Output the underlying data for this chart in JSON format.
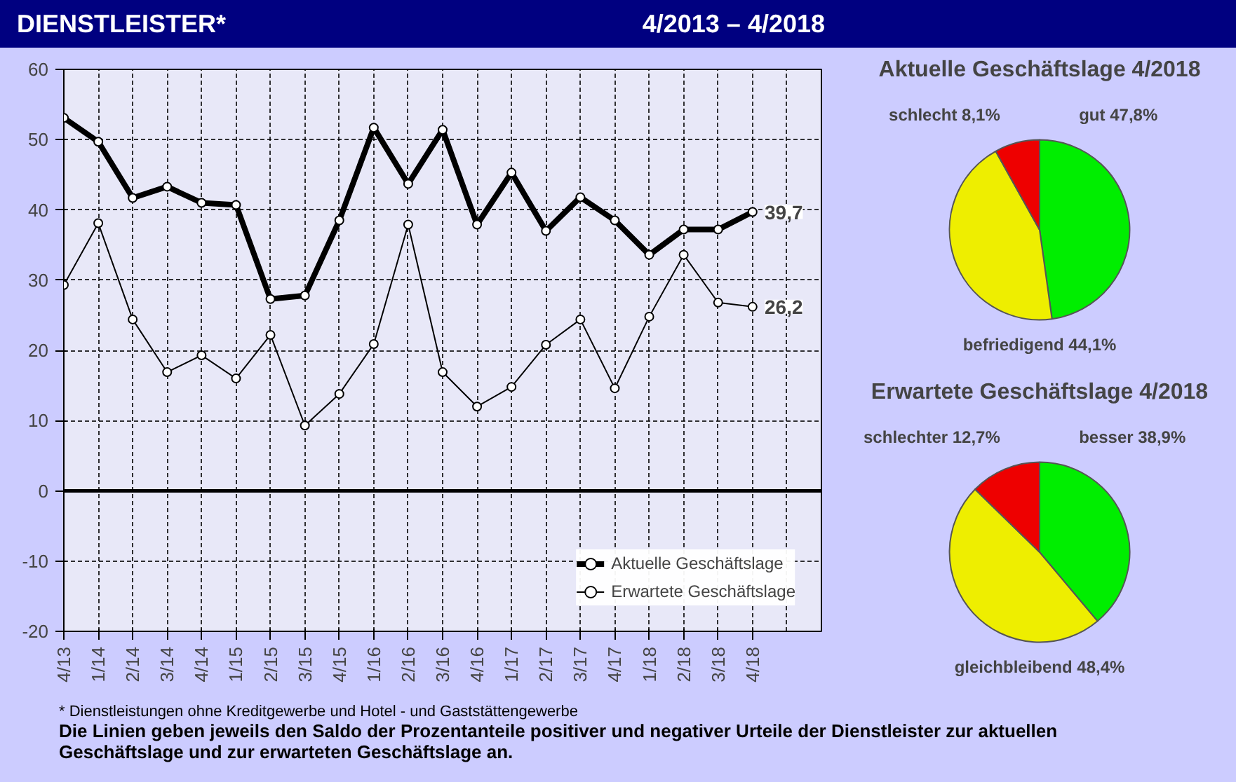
{
  "chart_data": [
    {
      "type": "line",
      "title": "DIENSTLEISTER*",
      "subtitle": "4/2013 – 4/2018",
      "categories": [
        "4/13",
        "1/14",
        "2/14",
        "3/14",
        "4/14",
        "1/15",
        "2/15",
        "3/15",
        "4/15",
        "1/16",
        "2/16",
        "3/16",
        "4/16",
        "1/17",
        "2/17",
        "3/17",
        "4/17",
        "1/18",
        "2/18",
        "3/18",
        "4/18"
      ],
      "series": [
        {
          "name": "Aktuelle Geschäftslage",
          "color": "#000000",
          "values": [
            53.1,
            49.7,
            41.7,
            43.3,
            41.0,
            40.7,
            27.3,
            27.8,
            38.5,
            51.7,
            43.7,
            51.4,
            37.9,
            45.3,
            37.0,
            41.8,
            38.5,
            33.6,
            37.2,
            37.2,
            39.7
          ]
        },
        {
          "name": "Erwartete Geschäftslage",
          "color": "#000000",
          "values": [
            29.3,
            38.1,
            24.4,
            16.9,
            19.3,
            16.0,
            22.2,
            9.3,
            13.8,
            20.9,
            37.9,
            16.9,
            12.0,
            14.8,
            20.8,
            24.4,
            14.6,
            24.8,
            33.6,
            26.8,
            26.2
          ]
        }
      ],
      "ylim": [
        -20,
        60
      ],
      "yticks": [
        -20,
        -10,
        0,
        10,
        20,
        30,
        40,
        50,
        60
      ],
      "ref_lines": [
        {
          "axis": "y",
          "value": 0,
          "color": "#000000"
        }
      ],
      "grid": true,
      "legend": "bottom right",
      "marker": "circle",
      "line_style": "solid",
      "annotations": [
        {
          "text": "39,7",
          "x": "4/18",
          "y": 39.7
        },
        {
          "text": "26,2",
          "x": "4/18",
          "y": 26.2
        },
        "* Dienstleistungen ohne Kreditgewerbe und Hotel - und Gaststättengewerbe",
        "Die Linien geben jeweils den Saldo der Prozentanteile positiver und negativer Urteile der Dienstleister zur aktuellen Geschäftslage und zur erwarteten Geschäftslage an."
      ]
    },
    {
      "type": "pie",
      "title": "Aktuelle Geschäftslage 4/2018",
      "categories": [
        "gut",
        "befriedigend",
        "schlecht"
      ],
      "values": [
        47.8,
        44.1,
        8.1
      ],
      "value_labels": [
        "47,8%",
        "44,1%",
        "8,1%"
      ],
      "colors": [
        "#00ee00",
        "#eeee00",
        "#ee0000"
      ]
    },
    {
      "type": "pie",
      "title": "Erwartete Geschäftslage 4/2018",
      "categories": [
        "besser",
        "gleichbleibend",
        "schlechter"
      ],
      "values": [
        38.9,
        48.4,
        12.7
      ],
      "value_labels": [
        "38,9%",
        "48,4%",
        "12,7%"
      ],
      "colors": [
        "#00ee00",
        "#eeee00",
        "#ee0000"
      ]
    }
  ]
}
